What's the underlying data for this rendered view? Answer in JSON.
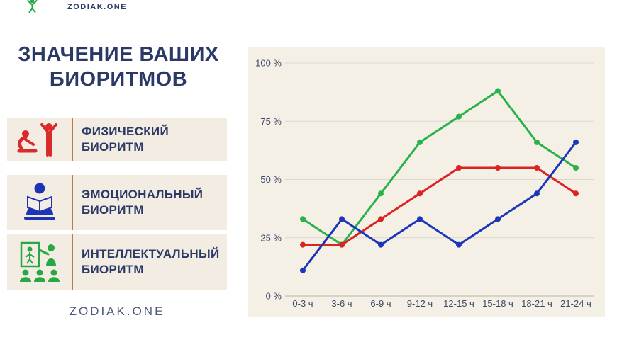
{
  "header": {
    "brand": "ZODIAK.ONE"
  },
  "title": "ЗНАЧЕНИЕ ВАШИХ БИОРИТМОВ",
  "legend": {
    "items": [
      {
        "label": "ФИЗИЧЕСКИЙ БИОРИТМ",
        "icon": "exercise-icon",
        "color": "#d92b2b"
      },
      {
        "label": "ЭМОЦИОНАЛЬНЫЙ БИОРИТМ",
        "icon": "reading-person-icon",
        "color": "#1d35b4"
      },
      {
        "label": "ИНТЕЛЛЕКТУАЛЬНЫЙ БИОРИТМ",
        "icon": "presentation-icon",
        "color": "#27a845"
      }
    ]
  },
  "footer": {
    "brand": "ZODIAK.ONE"
  },
  "colors": {
    "title_navy": "#2b3966",
    "panel_background": "#f5f0e6",
    "legend_box_background": "#f2ece2",
    "legend_divider": "#bf7d45",
    "gridline": "#ddd8cc",
    "axis_text": "#3e4969",
    "logo_green": "#27a845"
  },
  "chart_data": {
    "type": "line",
    "title": "",
    "xlabel": "",
    "ylabel": "",
    "x_categories": [
      "0-3 ч",
      "3-6 ч",
      "6-9 ч",
      "9-12 ч",
      "12-15 ч",
      "15-18 ч",
      "18-21 ч",
      "21-24 ч"
    ],
    "y_ticks": [
      0,
      25,
      50,
      75,
      100
    ],
    "y_tick_suffix": " %",
    "ylim": [
      0,
      100
    ],
    "grid": true,
    "legend_position": "left-panel",
    "series": [
      {
        "name": "Интеллектуальный биоритм",
        "color": "#27b24a",
        "values": [
          33,
          22,
          44,
          66,
          77,
          88,
          66,
          55
        ]
      },
      {
        "name": "Физический биоритм",
        "color": "#db2323",
        "values": [
          22,
          22,
          33,
          44,
          55,
          55,
          55,
          44
        ]
      },
      {
        "name": "Эмоциональный биоритм",
        "color": "#1d35b8",
        "values": [
          11,
          33,
          22,
          33,
          22,
          33,
          44,
          66
        ]
      }
    ]
  }
}
